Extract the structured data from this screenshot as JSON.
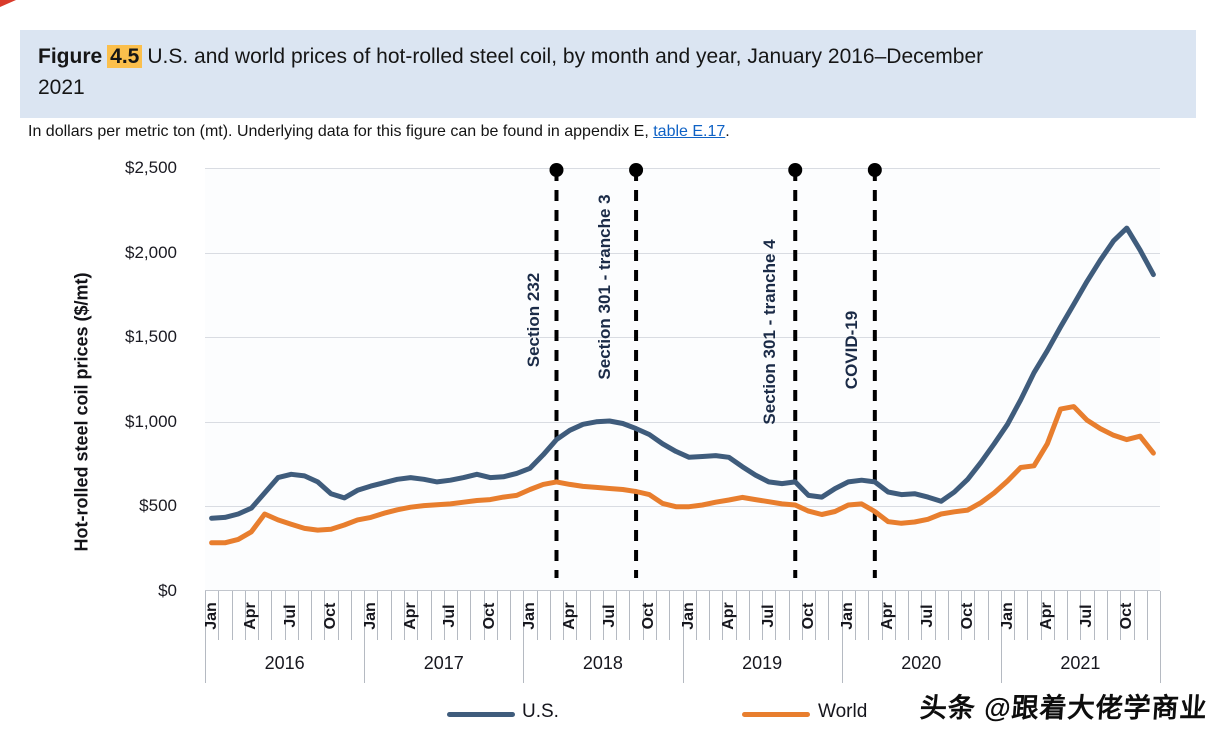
{
  "header": {
    "figure_label": "Figure",
    "figure_number": "4.5",
    "title_line1": "U.S. and world prices of hot-rolled steel coil, by month and year, January 2016–December",
    "title_line2": "2021"
  },
  "subtitle": {
    "prefix": "In dollars per metric ton (mt). Underlying data for this figure can be found in appendix E, ",
    "link": "table E.17",
    "suffix": "."
  },
  "watermark": "头条 @跟着大佬学商业",
  "chart_data": {
    "type": "line",
    "title": "U.S. and world prices of hot-rolled steel coil, by month and year, January 2016–December 2021",
    "ylabel": "Hot-rolled steel coil prices ($/mt)",
    "ylim": [
      0,
      2500
    ],
    "grid": true,
    "y_ticks": [
      {
        "value": 0,
        "label": "$0"
      },
      {
        "value": 500,
        "label": "$500"
      },
      {
        "value": 1000,
        "label": "$1,000"
      },
      {
        "value": 1500,
        "label": "$1,500"
      },
      {
        "value": 2000,
        "label": "$2,000"
      },
      {
        "value": 2500,
        "label": "$2,500"
      }
    ],
    "x_unit": "month",
    "years": [
      "2016",
      "2017",
      "2018",
      "2019",
      "2020",
      "2021"
    ],
    "month_tick_labels": [
      "Jan",
      "Apr",
      "Jul",
      "Oct"
    ],
    "series": [
      {
        "name": "U.S.",
        "color": "#3f5c7c",
        "values": [
          430,
          435,
          455,
          490,
          580,
          670,
          690,
          680,
          645,
          575,
          550,
          595,
          620,
          640,
          660,
          670,
          660,
          645,
          655,
          670,
          690,
          670,
          675,
          695,
          725,
          805,
          895,
          950,
          985,
          1000,
          1005,
          990,
          960,
          925,
          870,
          825,
          790,
          795,
          800,
          790,
          735,
          685,
          645,
          635,
          645,
          565,
          555,
          605,
          645,
          655,
          645,
          585,
          570,
          575,
          555,
          530,
          585,
          660,
          760,
          870,
          985,
          1130,
          1290,
          1420,
          1560,
          1695,
          1830,
          1955,
          2070,
          2145,
          2015,
          1870
        ]
      },
      {
        "name": "World",
        "color": "#e87e2e",
        "values": [
          285,
          285,
          305,
          350,
          455,
          420,
          395,
          370,
          360,
          365,
          390,
          420,
          435,
          460,
          480,
          495,
          505,
          510,
          515,
          525,
          535,
          540,
          555,
          565,
          600,
          630,
          645,
          630,
          618,
          612,
          606,
          600,
          588,
          570,
          518,
          498,
          498,
          508,
          525,
          538,
          553,
          540,
          528,
          515,
          508,
          472,
          452,
          470,
          508,
          515,
          470,
          410,
          400,
          408,
          424,
          455,
          468,
          478,
          522,
          580,
          650,
          730,
          740,
          870,
          1075,
          1090,
          1010,
          960,
          920,
          895,
          915,
          815
        ]
      }
    ],
    "annotations": [
      {
        "label": "Section 232",
        "date": "Mar 2018",
        "month_index": 26
      },
      {
        "label": "Section 301 - tranche 3",
        "date": "Sep 2018",
        "month_index": 32
      },
      {
        "label": "Section 301 - tranche 4",
        "date": "Sep 2019",
        "month_index": 44
      },
      {
        "label": "COVID-19",
        "date": "Mar 2020",
        "month_index": 50
      }
    ],
    "legend_position": "bottom"
  }
}
